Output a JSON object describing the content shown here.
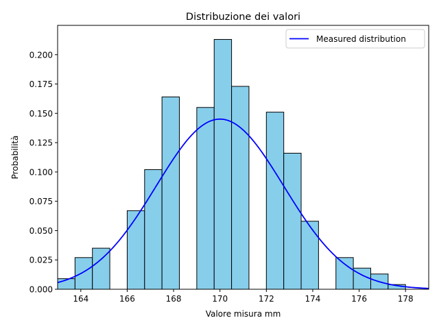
{
  "chart_data": {
    "type": "histogram",
    "title": "Distribuzione dei valori",
    "xlabel": "Valore misura mm",
    "ylabel": "Probabilità",
    "xlim": [
      163.0,
      179.0
    ],
    "ylim": [
      0.0,
      0.225
    ],
    "xticks": [
      164,
      166,
      168,
      170,
      172,
      174,
      176,
      178
    ],
    "yticks": [
      0.0,
      0.025,
      0.05,
      0.075,
      0.1,
      0.125,
      0.15,
      0.175,
      0.2
    ],
    "ytick_labels": [
      "0.000",
      "0.025",
      "0.050",
      "0.075",
      "0.100",
      "0.125",
      "0.150",
      "0.175",
      "0.200"
    ],
    "bin_edges": [
      163.0,
      163.75,
      164.5,
      165.25,
      166.0,
      166.75,
      167.5,
      168.25,
      169.0,
      169.75,
      170.5,
      171.25,
      172.0,
      172.75,
      173.5,
      174.25,
      175.0,
      175.75,
      176.5,
      177.25,
      178.0
    ],
    "bin_values": [
      0.009,
      0.027,
      0.035,
      0.0,
      0.067,
      0.102,
      0.164,
      0.0,
      0.155,
      0.213,
      0.173,
      0.0,
      0.151,
      0.116,
      0.058,
      0.0,
      0.027,
      0.018,
      0.013,
      0.004
    ],
    "bar_color": "#87ceeb",
    "bar_edge_color": "#000000",
    "curve": {
      "name": "Measured distribution",
      "color": "#0000ff",
      "distribution": "normal",
      "mean": 170.0,
      "std": 2.75
    },
    "legend": {
      "position": "top-right"
    }
  }
}
